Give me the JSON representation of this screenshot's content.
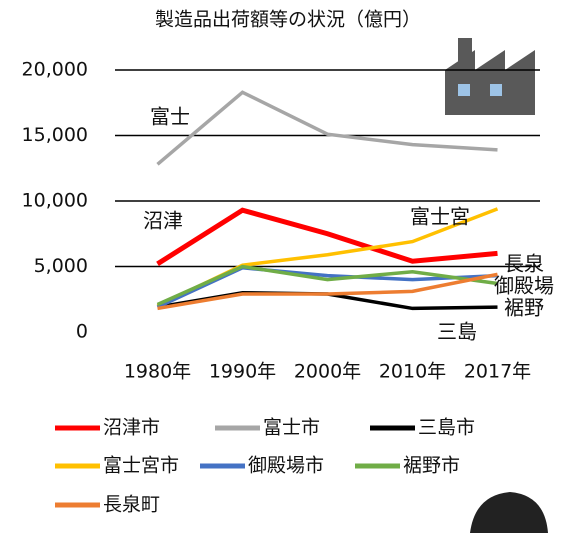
{
  "chart_data": {
    "type": "line",
    "title": "製造品出荷額等の状況（億円）",
    "categories": [
      "1980年",
      "1990年",
      "2000年",
      "2010年",
      "2017年"
    ],
    "series": [
      {
        "name": "沼津市",
        "color": "#ff0000",
        "values": [
          5200,
          9300,
          7500,
          5400,
          6000
        ]
      },
      {
        "name": "富士市",
        "color": "#a6a6a6",
        "values": [
          12800,
          18300,
          15100,
          14300,
          13900
        ]
      },
      {
        "name": "三島市",
        "color": "#000000",
        "values": [
          1900,
          3000,
          2900,
          1800,
          1900
        ]
      },
      {
        "name": "富士宮市",
        "color": "#ffc000",
        "values": [
          2000,
          5100,
          5900,
          6900,
          9400
        ]
      },
      {
        "name": "御殿場市",
        "color": "#4472c4",
        "values": [
          1900,
          4900,
          4300,
          4000,
          4300
        ]
      },
      {
        "name": "裾野市",
        "color": "#70ad47",
        "values": [
          2100,
          5000,
          4000,
          4600,
          3700
        ]
      },
      {
        "name": "長泉町",
        "color": "#ed7d31",
        "values": [
          1800,
          2900,
          2900,
          3100,
          4400
        ]
      }
    ],
    "annotations": [
      "富士",
      "沼津",
      "富士宮",
      "長泉",
      "御殿場",
      "裾野",
      "三島"
    ],
    "ylim": [
      0,
      20000
    ],
    "yticks": [
      0,
      {
        "value": 5000,
        "label": "5,000"
      },
      {
        "value": 10000,
        "label": "10,000"
      },
      {
        "value": 15000,
        "label": "15,000"
      },
      {
        "value": 20000,
        "label": "20,000"
      }
    ],
    "grid": true
  }
}
